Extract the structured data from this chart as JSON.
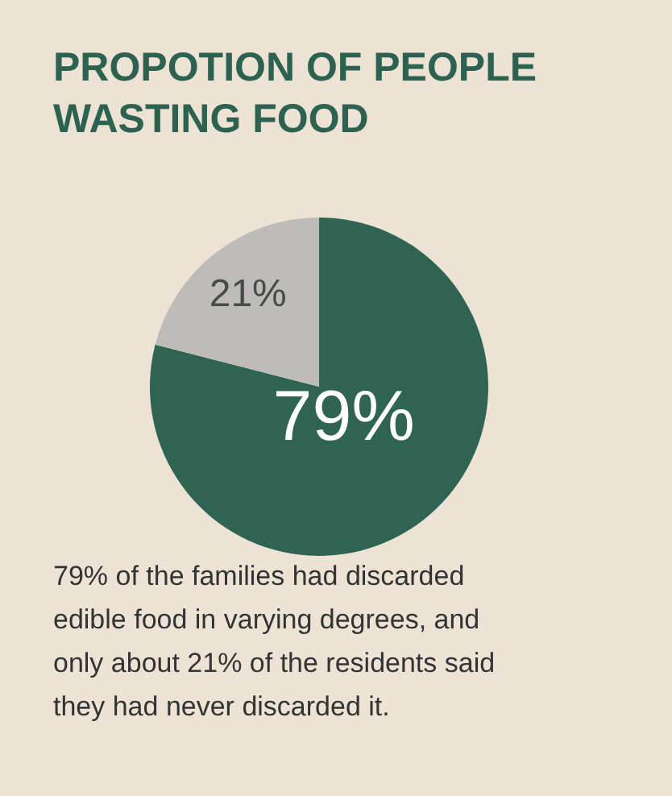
{
  "chart_data": {
    "type": "pie",
    "title": "PROPOTION OF PEOPLE WASTING FOOD",
    "categories": [
      null,
      null
    ],
    "values": [
      79,
      21
    ],
    "colors": [
      "#2f6453",
      "#bdbcb8"
    ],
    "value_labels": [
      "79%",
      "21%"
    ],
    "annotations": [
      "79% of the families had discarded edible food in varying degrees, and only about 21% of the residents said they had never discarded it."
    ]
  }
}
